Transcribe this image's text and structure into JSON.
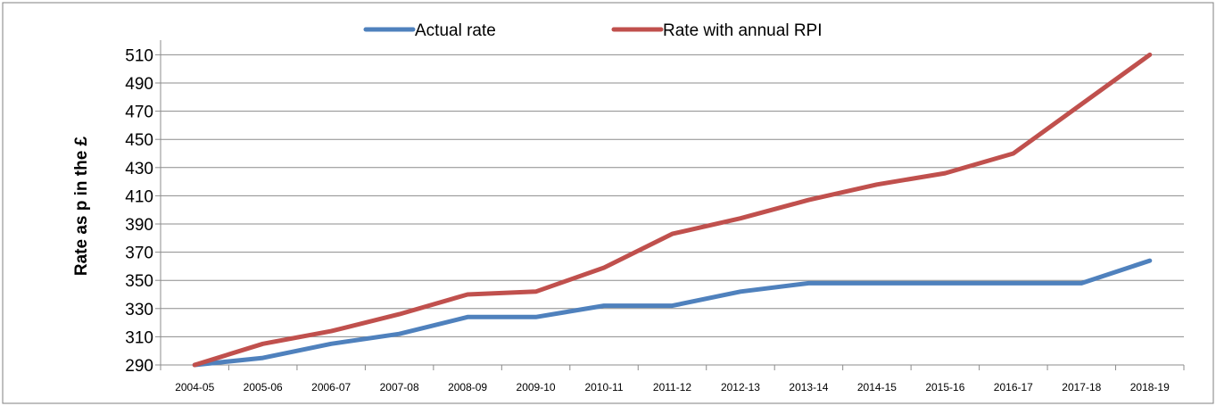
{
  "chart_data": {
    "type": "line",
    "title": "",
    "xlabel": "",
    "ylabel": "Rate as p in the £",
    "categories": [
      "2004-05",
      "2005-06",
      "2006-07",
      "2007-08",
      "2008-09",
      "2009-10",
      "2010-11",
      "2011-12",
      "2012-13",
      "2013-14",
      "2014-15",
      "2015-16",
      "2016-17",
      "2017-18",
      "2018-19"
    ],
    "yticks": [
      "290",
      "310",
      "330",
      "350",
      "370",
      "390",
      "410",
      "430",
      "450",
      "470",
      "490",
      "510"
    ],
    "ylim": [
      290,
      520
    ],
    "grid": "horizontal",
    "legend_position": "top",
    "series": [
      {
        "name": "Actual rate",
        "color": "#4f81bd",
        "values": [
          290,
          295,
          305,
          312,
          324,
          324,
          332,
          332,
          342,
          348,
          348,
          348,
          348,
          348,
          364
        ]
      },
      {
        "name": "Rate with annual RPI",
        "color": "#c0504d",
        "values": [
          290,
          305,
          314,
          326,
          340,
          342,
          359,
          383,
          394,
          407,
          418,
          426,
          440,
          475,
          510
        ]
      }
    ]
  }
}
